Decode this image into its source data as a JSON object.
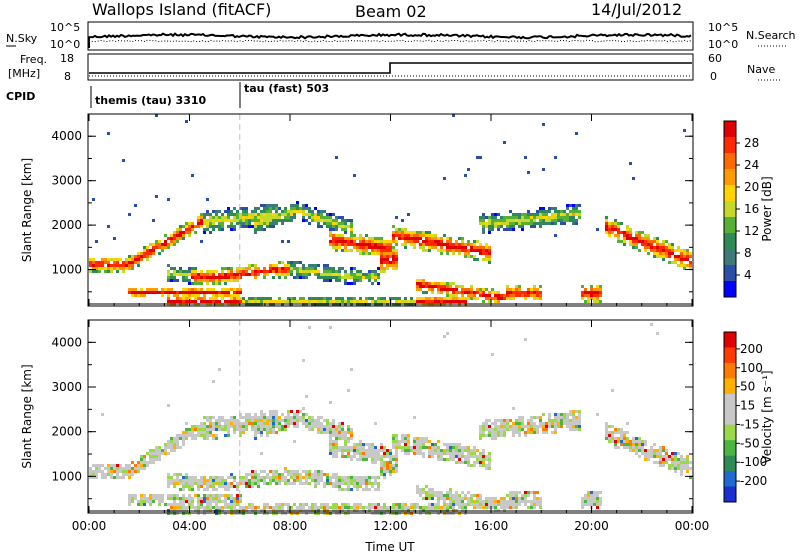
{
  "header": {
    "station": "Wallops Island (fitACF)",
    "beam": "Beam 02",
    "date": "14/Jul/2012"
  },
  "panels": {
    "nsky_label": "N.Sky",
    "nsearch_label": "N.Search",
    "freq_label": "Freq.",
    "freq_unit": "[MHz]",
    "nave_label": "Nave",
    "cpid_label": "CPID",
    "noise_ticks_left": [
      "10^5",
      "10^0"
    ],
    "noise_ticks_right": [
      "10^5",
      "10^0"
    ],
    "freq_ticks": [
      "18",
      "8"
    ],
    "nave_ticks": [
      "60",
      "0"
    ],
    "cpid_segments": [
      {
        "label": "themis (tau) 3310",
        "start_hour": 0
      },
      {
        "label": "tau (fast) 503",
        "start_hour": 6
      }
    ]
  },
  "chart_data": [
    {
      "type": "heatmap",
      "name": "power",
      "xlabel": "Time UT",
      "ylabel": "Slant Range [km]",
      "x_ticks": [
        "00:00",
        "04:00",
        "08:00",
        "12:00",
        "16:00",
        "20:00",
        "00:00"
      ],
      "x_tick_hours": [
        0,
        4,
        8,
        12,
        16,
        20,
        24
      ],
      "xlim": [
        0,
        24
      ],
      "y_ticks": [
        "1000",
        "2000",
        "3000",
        "4000"
      ],
      "ylim": [
        180,
        4500
      ],
      "colorbar_label": "Power [dB]",
      "colorbar_ticks": [
        "28",
        "24",
        "20",
        "16",
        "12",
        "8",
        "4"
      ],
      "colorbar_colors": [
        "#0000ff",
        "#2b4fa8",
        "#3e7a7a",
        "#2e8b57",
        "#55b035",
        "#c6d928",
        "#ffd400",
        "#ff9a00",
        "#ff6a00",
        "#ff2a00",
        "#e00000"
      ]
    },
    {
      "type": "heatmap",
      "name": "velocity",
      "xlabel": "Time UT",
      "ylabel": "Slant Range [km]",
      "x_ticks": [
        "00:00",
        "04:00",
        "08:00",
        "12:00",
        "16:00",
        "20:00",
        "00:00"
      ],
      "x_tick_hours": [
        0,
        4,
        8,
        12,
        16,
        20,
        24
      ],
      "xlim": [
        0,
        24
      ],
      "y_ticks": [
        "1000",
        "2000",
        "3000",
        "4000"
      ],
      "ylim": [
        180,
        4500
      ],
      "colorbar_label": "Velocity [m s⁻¹]",
      "colorbar_ticks": [
        "200",
        "100",
        "50",
        "15",
        "-15",
        "-50",
        "-100",
        "-200"
      ],
      "colorbar_colors": [
        "#1a2fd0",
        "#1e6ad0",
        "#2e8b57",
        "#4ab540",
        "#9ad94a",
        "#c8c8c8",
        "#c8c8c8",
        "#ffb000",
        "#ff7a00",
        "#ff3a00",
        "#e00000"
      ]
    }
  ],
  "time_label": "Time UT"
}
